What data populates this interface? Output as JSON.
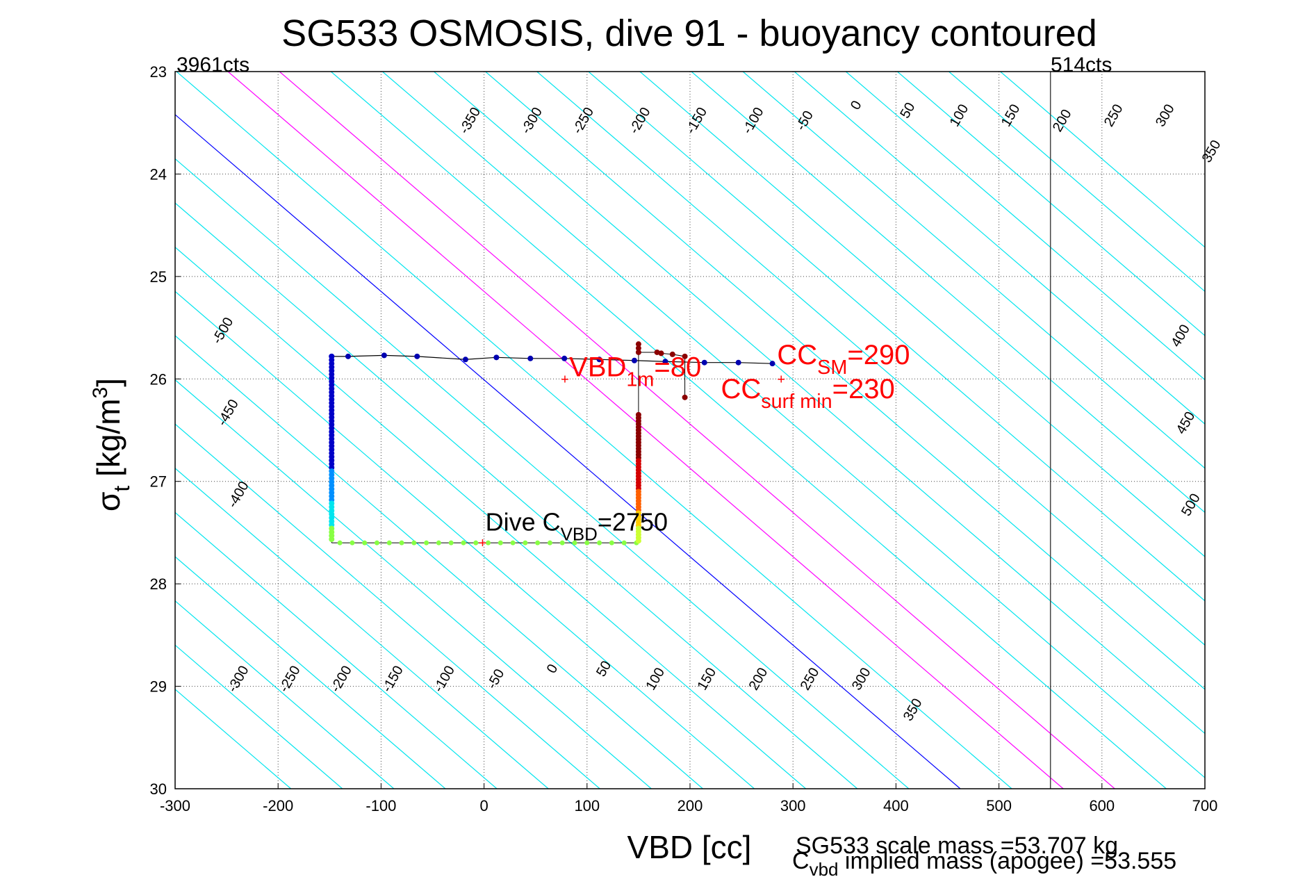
{
  "chart_data": {
    "type": "scatter",
    "title": "SG533 OSMOSIS, dive 91 - buoyancy contoured",
    "xlabel": "VBD [cc]",
    "ylabel": {
      "main": "σ",
      "sub": "t",
      "rest": " [kg/m",
      "sup": "3",
      "end": "]"
    },
    "xlim": [
      -300,
      700
    ],
    "ylim": [
      23,
      30
    ],
    "y_reversed": true,
    "grid": "dotted",
    "xticks": [
      -300,
      -200,
      -100,
      0,
      100,
      200,
      300,
      400,
      500,
      600,
      700
    ],
    "yticks": [
      23,
      24,
      25,
      26,
      27,
      28,
      29,
      30
    ],
    "corner_left": "3961cts",
    "corner_right": "514cts",
    "vertical_line_x": 550,
    "contour_colors": {
      "default": "#00e5ee",
      "zero": "#0000ff",
      "positive_mid": "#ff00ff",
      "axis_line": "#444444"
    },
    "contours": {
      "upper_labels": [
        {
          "v": -350,
          "x": -10,
          "y": 23.5
        },
        {
          "v": -300,
          "x": 50,
          "y": 23.5
        },
        {
          "v": -250,
          "x": 100,
          "y": 23.5
        },
        {
          "v": -200,
          "x": 155,
          "y": 23.5
        },
        {
          "v": -150,
          "x": 210,
          "y": 23.5
        },
        {
          "v": -100,
          "x": 265,
          "y": 23.5
        },
        {
          "v": -50,
          "x": 315,
          "y": 23.5
        },
        {
          "v": 0,
          "x": 365,
          "y": 23.35
        },
        {
          "v": 50,
          "x": 415,
          "y": 23.4
        },
        {
          "v": 100,
          "x": 465,
          "y": 23.45
        },
        {
          "v": 150,
          "x": 515,
          "y": 23.45
        },
        {
          "v": 200,
          "x": 565,
          "y": 23.5
        },
        {
          "v": 250,
          "x": 615,
          "y": 23.45
        },
        {
          "v": 300,
          "x": 665,
          "y": 23.45
        },
        {
          "v": 350,
          "x": 710,
          "y": 23.8
        }
      ],
      "left_labels": [
        {
          "v": -500,
          "x": -250,
          "y": 25.55
        },
        {
          "v": -450,
          "x": -245,
          "y": 26.35
        },
        {
          "v": -400,
          "x": -235,
          "y": 27.15
        }
      ],
      "right_labels": [
        {
          "v": 400,
          "x": 680,
          "y": 25.6
        },
        {
          "v": 450,
          "x": 685,
          "y": 26.45
        },
        {
          "v": 500,
          "x": 690,
          "y": 27.25
        }
      ],
      "lower_labels": [
        {
          "v": -300,
          "x": -235,
          "y": 28.95
        },
        {
          "v": -250,
          "x": -185,
          "y": 28.95
        },
        {
          "v": -200,
          "x": -135,
          "y": 28.95
        },
        {
          "v": -150,
          "x": -85,
          "y": 28.95
        },
        {
          "v": -100,
          "x": -35,
          "y": 28.95
        },
        {
          "v": -50,
          "x": 15,
          "y": 28.95
        },
        {
          "v": 0,
          "x": 70,
          "y": 28.85
        },
        {
          "v": 50,
          "x": 120,
          "y": 28.85
        },
        {
          "v": 100,
          "x": 170,
          "y": 28.95
        },
        {
          "v": 150,
          "x": 220,
          "y": 28.95
        },
        {
          "v": 200,
          "x": 270,
          "y": 28.95
        },
        {
          "v": 250,
          "x": 320,
          "y": 28.95
        },
        {
          "v": 300,
          "x": 370,
          "y": 28.95
        },
        {
          "v": 350,
          "x": 420,
          "y": 29.25
        }
      ]
    },
    "series": [
      {
        "name": "dive_points",
        "points": [
          [
            -148,
            25.78
          ],
          [
            -132,
            25.78
          ],
          [
            -97,
            25.77
          ],
          [
            -65,
            25.78
          ],
          [
            -18,
            25.81
          ],
          [
            12,
            25.79
          ],
          [
            45,
            25.8
          ],
          [
            78,
            25.8
          ],
          [
            112,
            25.81
          ],
          [
            146,
            25.82
          ],
          [
            176,
            25.83
          ],
          [
            214,
            25.84
          ],
          [
            247,
            25.84
          ],
          [
            280,
            25.85
          ]
        ]
      },
      {
        "name": "climb_points",
        "points": [
          [
            150,
            25.66
          ],
          [
            150,
            25.7
          ],
          [
            150,
            25.74
          ],
          [
            168,
            25.74
          ],
          [
            172,
            25.75
          ],
          [
            183,
            25.76
          ],
          [
            195,
            25.78
          ],
          [
            195,
            26.18
          ]
        ]
      }
    ],
    "annotations": {
      "vbd": {
        "text": "VBD",
        "sub": "1m",
        "end": "=80",
        "x": 80,
        "y": 26.0
      },
      "cc_sm": {
        "text": "CC",
        "sub": "SM",
        "end": "=290",
        "x": 290,
        "y": 26.0
      },
      "cc_surf": {
        "text": "CC",
        "sub": "surf min",
        "end": "=230",
        "x": 230,
        "y": 26.0
      },
      "dive_cvbd": {
        "text": "Dive C",
        "sub": "VBD",
        "end": "=2750",
        "x": 0,
        "y": 27.6
      }
    },
    "footer": {
      "scale_mass": "SG533 scale mass =53.707 kg",
      "cvbd_c": "C",
      "cvbd_sub": "vbd",
      "cvbd_text": " implied mass (apogee) =53.555"
    }
  }
}
